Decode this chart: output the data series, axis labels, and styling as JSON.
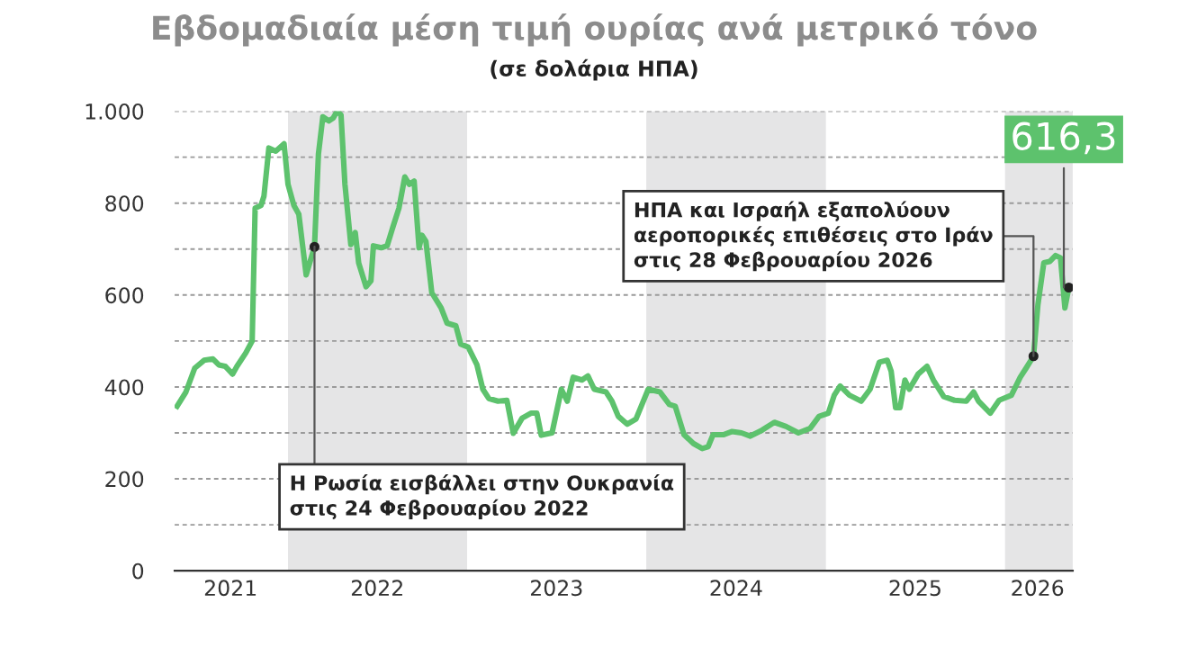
{
  "chart_data": {
    "type": "line",
    "title": "Εβδομαδιαία μέση τιμή ουρίας ανά μετρικό τόνο",
    "subtitle": "(σε δολάρια ΗΠΑ)",
    "x": [
      "2021-05-20",
      "2021-06-07",
      "2021-06-25",
      "2021-07-14",
      "2021-08-01",
      "2021-08-13",
      "2021-08-26",
      "2021-09-10",
      "2021-09-19",
      "2021-10-07",
      "2021-10-20",
      "2021-10-26",
      "2021-11-07",
      "2021-11-13",
      "2021-11-23",
      "2021-12-07",
      "2021-12-24",
      "2022-01-01",
      "2022-01-13",
      "2022-01-23",
      "2022-02-07",
      "2022-02-24",
      "2022-03-04",
      "2022-03-13",
      "2022-03-25",
      "2022-04-03",
      "2022-04-11",
      "2022-04-19",
      "2022-04-27",
      "2022-05-09",
      "2022-05-18",
      "2022-05-25",
      "2022-06-09",
      "2022-06-19",
      "2022-06-24",
      "2022-07-10",
      "2022-07-22",
      "2022-08-03",
      "2022-08-15",
      "2022-08-27",
      "2022-09-05",
      "2022-09-15",
      "2022-09-25",
      "2022-10-01",
      "2022-10-09",
      "2022-10-21",
      "2022-11-09",
      "2022-11-21",
      "2022-12-09",
      "2022-12-19",
      "2023-01-03",
      "2023-01-21",
      "2023-02-02",
      "2023-02-14",
      "2023-03-05",
      "2023-03-23",
      "2023-04-05",
      "2023-04-23",
      "2023-05-11",
      "2023-05-23",
      "2023-06-01",
      "2023-06-23",
      "2023-07-12",
      "2023-07-24",
      "2023-08-05",
      "2023-08-23",
      "2023-09-04",
      "2023-09-17",
      "2023-10-11",
      "2023-10-23",
      "2023-11-05",
      "2023-11-23",
      "2023-12-11",
      "2024-01-05",
      "2024-01-29",
      "2024-02-17",
      "2024-02-29",
      "2024-03-18",
      "2024-04-06",
      "2024-04-24",
      "2024-05-06",
      "2024-05-16",
      "2024-06-06",
      "2024-06-24",
      "2024-07-13",
      "2024-07-31",
      "2024-08-24",
      "2024-09-18",
      "2024-10-12",
      "2024-11-06",
      "2024-11-30",
      "2024-12-18",
      "2025-01-06",
      "2025-01-18",
      "2025-01-30",
      "2025-02-18",
      "2025-03-14",
      "2025-04-01",
      "2025-04-20",
      "2025-05-06",
      "2025-05-14",
      "2025-05-23",
      "2025-06-01",
      "2025-06-11",
      "2025-06-20",
      "2025-07-08",
      "2025-07-26",
      "2025-08-08",
      "2025-08-29",
      "2025-09-20",
      "2025-10-14",
      "2025-10-29",
      "2025-11-08",
      "2025-12-02",
      "2025-12-20",
      "2026-01-14",
      "2026-02-01",
      "2026-02-13",
      "2026-02-28",
      "2026-03-09",
      "2026-03-21",
      "2026-04-02",
      "2026-04-14",
      "2026-04-24",
      "2026-05-03",
      "2026-05-11"
    ],
    "series": [
      {
        "color": "#5dc26d",
        "values": [
          358,
          389,
          441,
          458,
          461,
          448,
          445,
          428,
          445,
          474,
          500,
          789,
          795,
          815,
          920,
          913,
          929,
          841,
          795,
          776,
          644,
          705,
          907,
          988,
          979,
          985,
          1000,
          992,
          841,
          710,
          736,
          670,
          618,
          631,
          707,
          703,
          707,
          749,
          789,
          857,
          841,
          848,
          703,
          730,
          717,
          605,
          572,
          539,
          533,
          493,
          487,
          448,
          395,
          375,
          369,
          371,
          299,
          332,
          343,
          343,
          295,
          300,
          395,
          369,
          421,
          415,
          424,
          395,
          389,
          369,
          336,
          319,
          330,
          395,
          389,
          362,
          358,
          296,
          277,
          266,
          270,
          296,
          296,
          303,
          300,
          293,
          306,
          323,
          314,
          300,
          310,
          336,
          343,
          382,
          402,
          382,
          369,
          395,
          454,
          458,
          434,
          355,
          355,
          415,
          395,
          428,
          445,
          415,
          379,
          371,
          369,
          389,
          369,
          343,
          371,
          382,
          421,
          441,
          467,
          579,
          670,
          673,
          686,
          681,
          572,
          616.3
        ],
        "value_labels": [
          null,
          null,
          null,
          null,
          null,
          null,
          null,
          null,
          null,
          null,
          null,
          null,
          null,
          null,
          null,
          null,
          null,
          null,
          null,
          null,
          null,
          null,
          null,
          null,
          null,
          null,
          null,
          null,
          null,
          null,
          null,
          null,
          null,
          null,
          null,
          null,
          null,
          null,
          null,
          null,
          null,
          null,
          null,
          null,
          null,
          null,
          null,
          null,
          null,
          null,
          null,
          null,
          null,
          null,
          null,
          null,
          null,
          null,
          null,
          null,
          null,
          null,
          null,
          null,
          null,
          null,
          null,
          null,
          null,
          null,
          null,
          null,
          null,
          null,
          null,
          null,
          null,
          null,
          null,
          null,
          null,
          null,
          null,
          null,
          null,
          null,
          null,
          null,
          null,
          null,
          null,
          null,
          null,
          null,
          null,
          null,
          null,
          null,
          null,
          null,
          null,
          null,
          null,
          null,
          null,
          null,
          null,
          null,
          null,
          null,
          null,
          null,
          null,
          null,
          null,
          null,
          null,
          null,
          null,
          null,
          null,
          null,
          null,
          null,
          null,
          "616,3"
        ]
      }
    ],
    "xlim": [
      "2021-05-15",
      "2026-05-19"
    ],
    "xticks": [
      {
        "value": "2021-09-06",
        "label": "2021"
      },
      {
        "value": "2022-07-02",
        "label": "2022"
      },
      {
        "value": "2023-07-02",
        "label": "2023"
      },
      {
        "value": "2024-07-02",
        "label": "2024"
      },
      {
        "value": "2025-07-02",
        "label": "2025"
      },
      {
        "value": "2026-03-08",
        "label": "2026"
      }
    ],
    "ylim": [
      0,
      1000
    ],
    "yticks": [
      0,
      {
        "value": 100,
        "label": null
      },
      200,
      {
        "value": 300,
        "label": null
      },
      400,
      {
        "value": 500,
        "label": null
      },
      600,
      {
        "value": 700,
        "label": null
      },
      800,
      {
        "value": 900,
        "label": null
      },
      {
        "value": 1000,
        "label": "1.000"
      }
    ],
    "grid": "y",
    "bands": [
      {
        "axis": "x",
        "from": "2022-01-01",
        "to": "2023-01-01",
        "color": "#e5e5e6"
      },
      {
        "axis": "x",
        "from": "2024-01-01",
        "to": "2025-01-01",
        "color": "#e5e5e6"
      },
      {
        "axis": "x",
        "from": "2026-01-01",
        "to": "2026-05-19",
        "color": "#e5e5e6"
      }
    ],
    "annotations": [
      {
        "text": "Η Ρωσία εισβάλλει στην Ουκρανία\nστις 24 Φεβρουαρίου 2022",
        "x": "2022-02-24",
        "y": 705
      },
      {
        "text": "ΗΠΑ και Ισραήλ εξαπολύουν\nαεροπορικές επιθέσεις στο Ιράν\nστις 28 Φεβρουαρίου 2026",
        "x": "2026-02-28",
        "y": 467
      }
    ]
  }
}
